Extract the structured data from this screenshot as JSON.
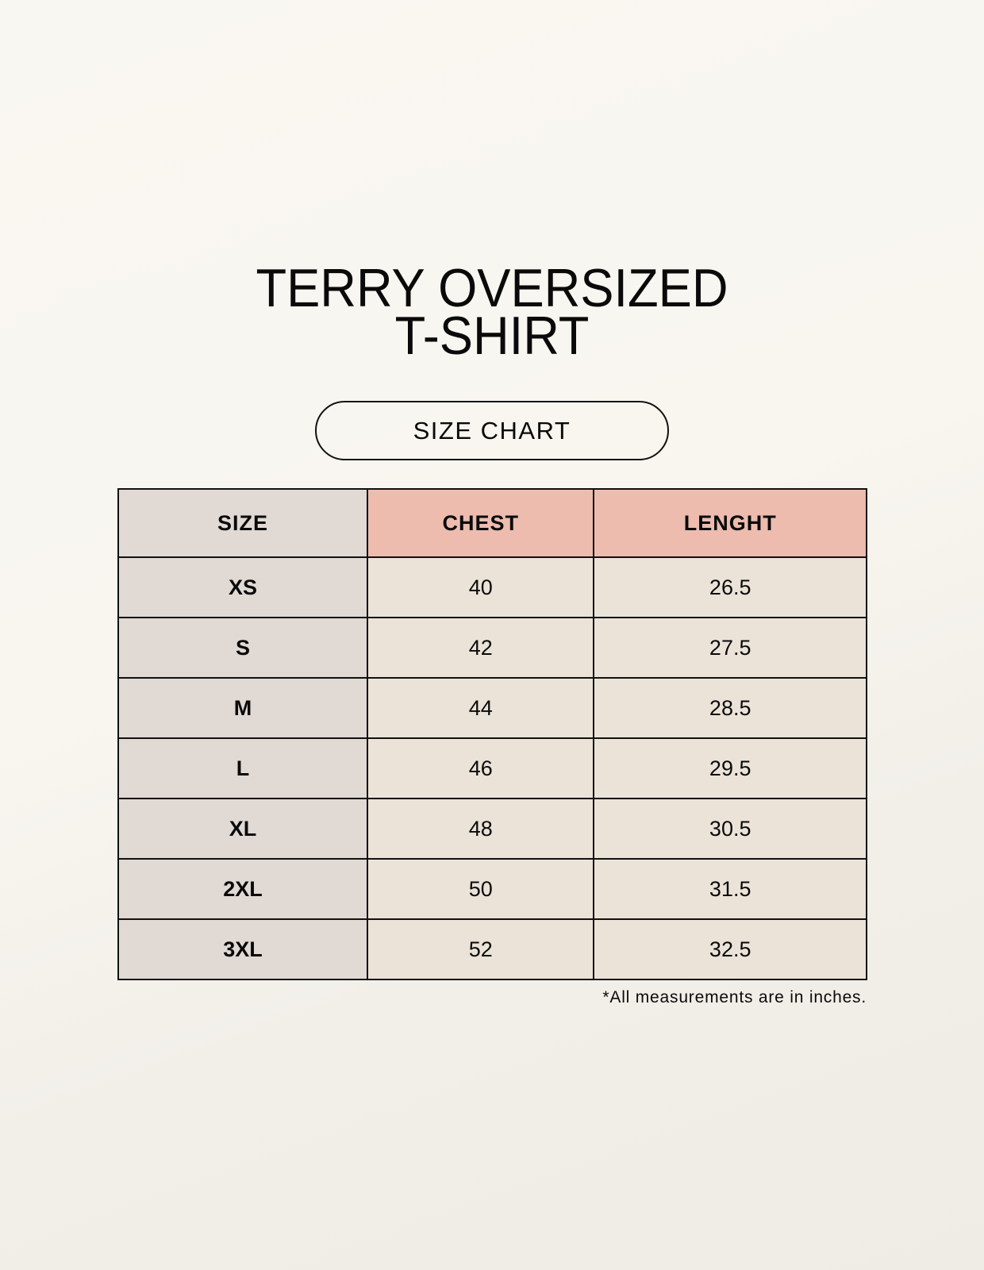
{
  "title_line1": "TERRY OVERSIZED",
  "title_line2": "T-SHIRT",
  "subtitle": "SIZE CHART",
  "table": {
    "headers": [
      "SIZE",
      "CHEST",
      "LENGHT"
    ],
    "rows": [
      [
        "XS",
        "40",
        "26.5"
      ],
      [
        "S",
        "42",
        "27.5"
      ],
      [
        "M",
        "44",
        "28.5"
      ],
      [
        "L",
        "46",
        "29.5"
      ],
      [
        "XL",
        "48",
        "30.5"
      ],
      [
        "2XL",
        "50",
        "31.5"
      ],
      [
        "3XL",
        "52",
        "32.5"
      ]
    ]
  },
  "footnote": "*All measurements are in inches.",
  "colors": {
    "size_column": "#e0d9d4",
    "header_accent": "#edbcae",
    "value_cells": "#ebe3d8"
  }
}
